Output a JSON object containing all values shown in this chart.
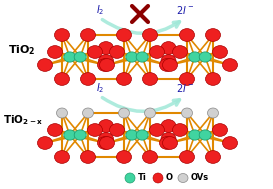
{
  "bg_color": "#ffffff",
  "color_ti": "#40d4a0",
  "color_o": "#ee2020",
  "color_ovs": "#d0d0d0",
  "color_bond": "#e08800",
  "color_arrow": "#a0e8d8",
  "color_cross": "#8b0000",
  "color_label": "#1a1aaa",
  "color_text": "#000000",
  "legend_ti": "Ti",
  "legend_o": "O",
  "legend_ovs": "OVs"
}
